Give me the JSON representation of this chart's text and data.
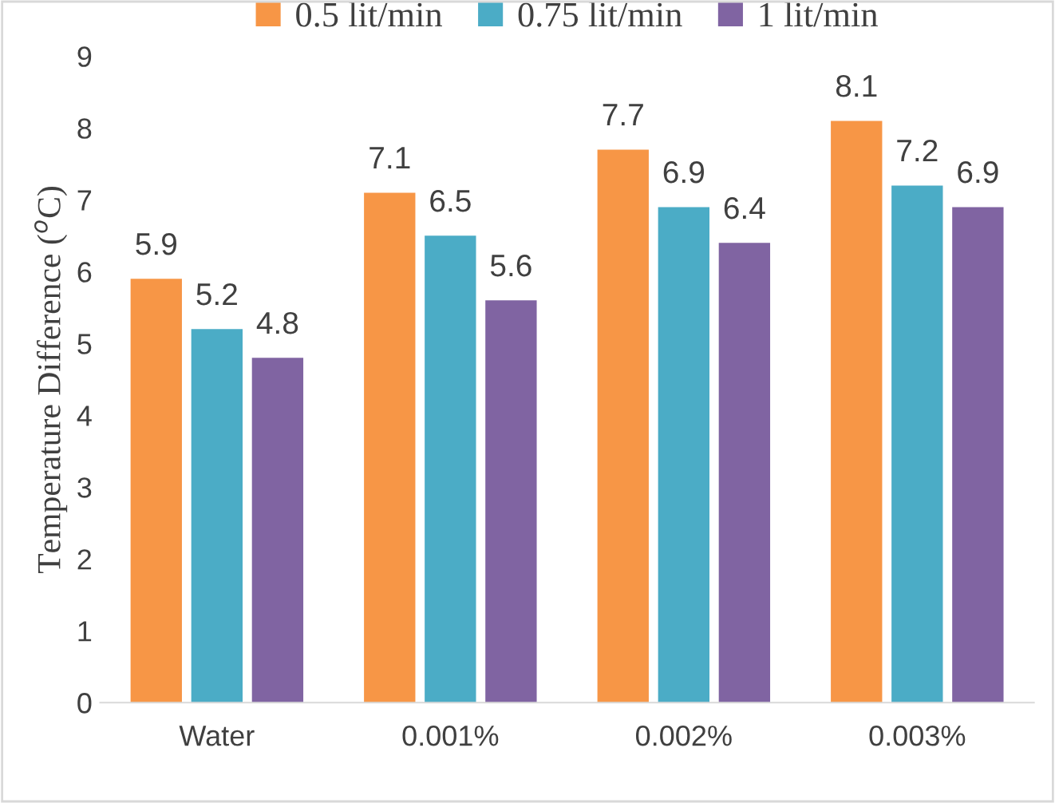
{
  "chart_data": {
    "type": "bar",
    "ylabel": "Temperature Difference ($^{o}$C)",
    "categories": [
      "Water",
      "0.001%",
      "0.002%",
      "0.003%"
    ],
    "series": [
      {
        "name": "0.5 lit/min",
        "color": "#f79646",
        "values": [
          5.9,
          7.1,
          7.7,
          8.1
        ]
      },
      {
        "name": "0.75 lit/min",
        "color": "#4bacc6",
        "values": [
          5.2,
          6.5,
          6.9,
          7.2
        ]
      },
      {
        "name": "1 lit/min",
        "color": "#8064a2",
        "values": [
          4.8,
          5.6,
          6.4,
          6.9
        ]
      }
    ],
    "ylim": [
      0,
      9
    ],
    "yticks": [
      0,
      1,
      2,
      3,
      4,
      5,
      6,
      7,
      8,
      9
    ],
    "data_labels": true,
    "grid": false,
    "legend": "top"
  }
}
